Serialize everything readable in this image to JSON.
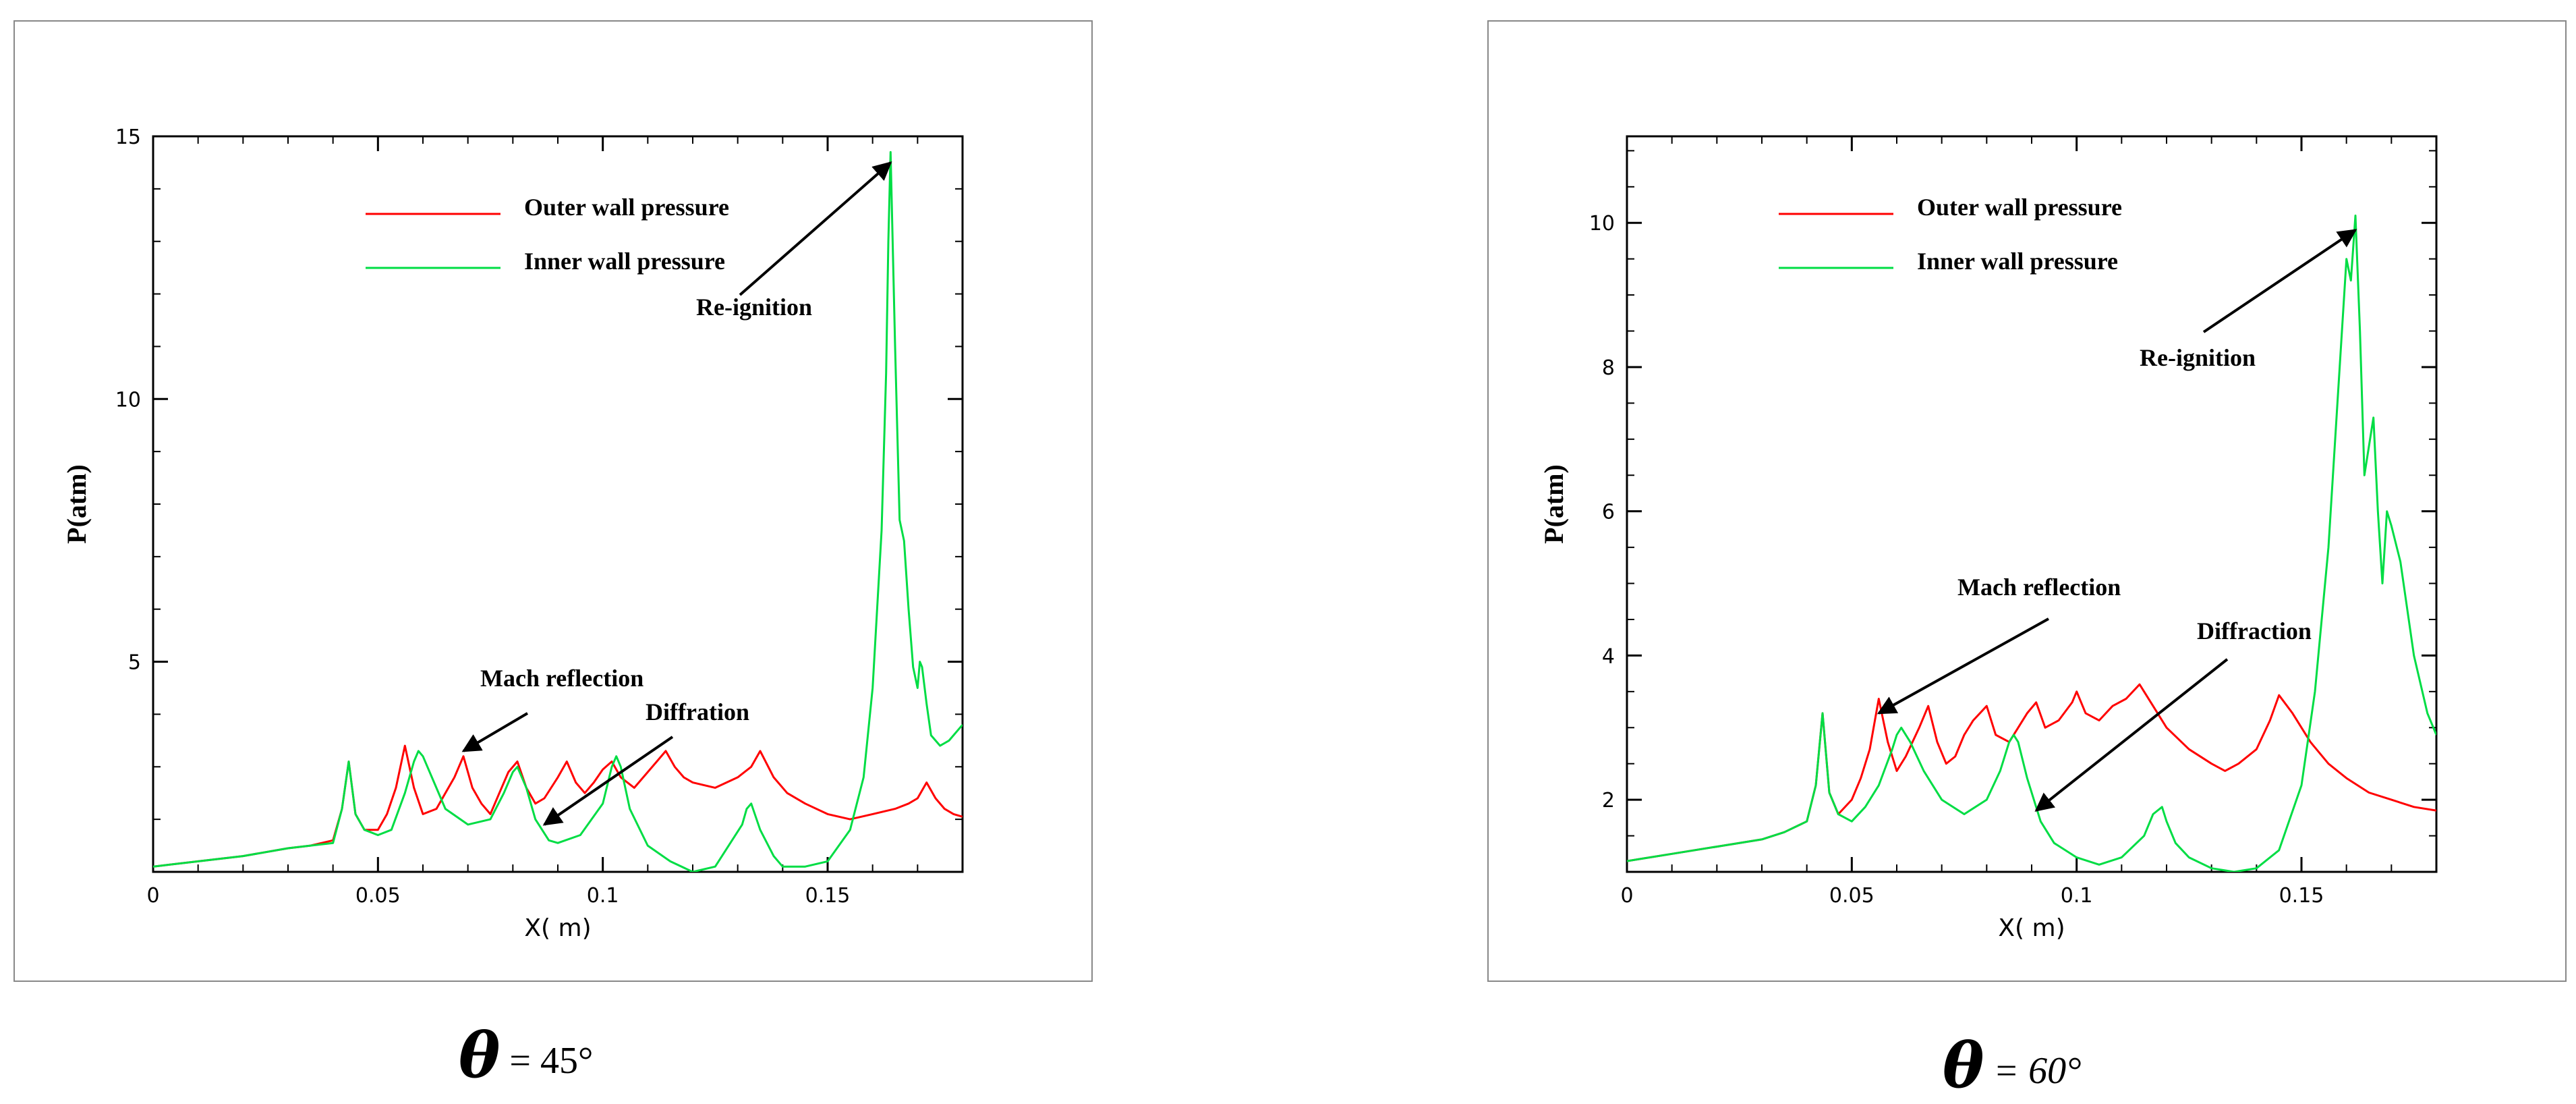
{
  "chart_data": [
    {
      "type": "line",
      "xlabel": "X( m)",
      "ylabel": "P(atm)",
      "xlim": [
        0,
        0.18
      ],
      "ylim": [
        1,
        15
      ],
      "x_ticks": [
        "0",
        "0.05",
        "0.1",
        "0.15"
      ],
      "y_ticks": [
        "5",
        "10",
        "15"
      ],
      "legend_position": "top",
      "series": [
        {
          "name": "Outer wall pressure",
          "color": "#ff0000",
          "x": [
            0,
            0.01,
            0.02,
            0.03,
            0.035,
            0.04,
            0.042,
            0.0435,
            0.045,
            0.047,
            0.05,
            0.052,
            0.054,
            0.056,
            0.058,
            0.06,
            0.063,
            0.065,
            0.067,
            0.069,
            0.071,
            0.073,
            0.075,
            0.077,
            0.079,
            0.081,
            0.083,
            0.085,
            0.087,
            0.09,
            0.092,
            0.094,
            0.096,
            0.098,
            0.1,
            0.102,
            0.104,
            0.107,
            0.11,
            0.112,
            0.114,
            0.116,
            0.118,
            0.12,
            0.125,
            0.13,
            0.133,
            0.135,
            0.138,
            0.141,
            0.145,
            0.15,
            0.155,
            0.16,
            0.165,
            0.168,
            0.17,
            0.172,
            0.174,
            0.176,
            0.178,
            0.18
          ],
          "y": [
            1.1,
            1.2,
            1.3,
            1.45,
            1.5,
            1.6,
            2.2,
            3.1,
            2.1,
            1.8,
            1.8,
            2.1,
            2.6,
            3.4,
            2.6,
            2.1,
            2.2,
            2.5,
            2.8,
            3.2,
            2.6,
            2.3,
            2.1,
            2.5,
            2.9,
            3.1,
            2.6,
            2.3,
            2.4,
            2.8,
            3.1,
            2.7,
            2.5,
            2.7,
            2.95,
            3.1,
            2.8,
            2.6,
            2.9,
            3.1,
            3.3,
            3.0,
            2.8,
            2.7,
            2.6,
            2.8,
            3.0,
            3.3,
            2.8,
            2.5,
            2.3,
            2.1,
            2.0,
            2.1,
            2.2,
            2.3,
            2.4,
            2.7,
            2.4,
            2.2,
            2.1,
            2.05
          ]
        },
        {
          "name": "Inner wall pressure",
          "color": "#00dd44",
          "x": [
            0,
            0.01,
            0.02,
            0.03,
            0.035,
            0.04,
            0.042,
            0.0435,
            0.045,
            0.047,
            0.05,
            0.053,
            0.056,
            0.058,
            0.059,
            0.06,
            0.062,
            0.065,
            0.07,
            0.075,
            0.078,
            0.08,
            0.081,
            0.083,
            0.085,
            0.088,
            0.09,
            0.095,
            0.1,
            0.102,
            0.103,
            0.104,
            0.106,
            0.11,
            0.115,
            0.12,
            0.125,
            0.128,
            0.131,
            0.132,
            0.133,
            0.135,
            0.138,
            0.14,
            0.145,
            0.15,
            0.155,
            0.158,
            0.16,
            0.162,
            0.163,
            0.1635,
            0.164,
            0.165,
            0.166,
            0.167,
            0.168,
            0.169,
            0.17,
            0.1705,
            0.171,
            0.172,
            0.173,
            0.175,
            0.177,
            0.179,
            0.18
          ],
          "y": [
            1.1,
            1.2,
            1.3,
            1.45,
            1.5,
            1.55,
            2.2,
            3.1,
            2.1,
            1.8,
            1.7,
            1.8,
            2.5,
            3.1,
            3.3,
            3.2,
            2.8,
            2.2,
            1.9,
            2.0,
            2.5,
            2.9,
            3.0,
            2.6,
            2.0,
            1.6,
            1.55,
            1.7,
            2.3,
            3.0,
            3.2,
            3.0,
            2.2,
            1.5,
            1.2,
            1.0,
            1.1,
            1.5,
            1.9,
            2.2,
            2.3,
            1.8,
            1.3,
            1.1,
            1.1,
            1.2,
            1.8,
            2.8,
            4.5,
            7.5,
            10.5,
            13.0,
            14.7,
            11.0,
            7.7,
            7.3,
            6.0,
            4.9,
            4.5,
            5.0,
            4.9,
            4.2,
            3.6,
            3.4,
            3.5,
            3.7,
            3.8
          ]
        }
      ],
      "annotations": [
        {
          "text": "Re-ignition",
          "points_to": [
            0.164,
            14.5
          ]
        },
        {
          "text": "Mach reflection",
          "points_to": [
            0.069,
            3.3
          ]
        },
        {
          "text": "Diffration",
          "points_to": [
            0.087,
            1.9
          ]
        }
      ],
      "caption": {
        "symbol": "θ",
        "value": "= 45°"
      }
    },
    {
      "type": "line",
      "xlabel": "X( m)",
      "ylabel": "P(atm)",
      "xlim": [
        0,
        0.18
      ],
      "ylim": [
        1,
        11.2
      ],
      "x_ticks": [
        "0",
        "0.05",
        "0.1",
        "0.15"
      ],
      "y_ticks": [
        "2",
        "4",
        "6",
        "8",
        "10"
      ],
      "legend_position": "top",
      "series": [
        {
          "name": "Outer wall pressure",
          "color": "#ff0000",
          "x": [
            0,
            0.01,
            0.02,
            0.03,
            0.035,
            0.04,
            0.042,
            0.0435,
            0.045,
            0.047,
            0.05,
            0.052,
            0.054,
            0.056,
            0.058,
            0.06,
            0.062,
            0.065,
            0.067,
            0.069,
            0.071,
            0.073,
            0.075,
            0.077,
            0.08,
            0.082,
            0.085,
            0.087,
            0.089,
            0.091,
            0.093,
            0.096,
            0.099,
            0.1,
            0.102,
            0.105,
            0.108,
            0.111,
            0.114,
            0.117,
            0.12,
            0.125,
            0.13,
            0.133,
            0.136,
            0.14,
            0.143,
            0.145,
            0.148,
            0.152,
            0.156,
            0.16,
            0.165,
            0.17,
            0.175,
            0.18
          ],
          "y": [
            1.15,
            1.25,
            1.35,
            1.45,
            1.55,
            1.7,
            2.2,
            3.2,
            2.1,
            1.8,
            2.0,
            2.3,
            2.7,
            3.4,
            2.8,
            2.4,
            2.6,
            3.0,
            3.3,
            2.8,
            2.5,
            2.6,
            2.9,
            3.1,
            3.3,
            2.9,
            2.8,
            3.0,
            3.2,
            3.35,
            3.0,
            3.1,
            3.35,
            3.5,
            3.2,
            3.1,
            3.3,
            3.4,
            3.6,
            3.3,
            3.0,
            2.7,
            2.5,
            2.4,
            2.5,
            2.7,
            3.1,
            3.45,
            3.2,
            2.8,
            2.5,
            2.3,
            2.1,
            2.0,
            1.9,
            1.85
          ]
        },
        {
          "name": "Inner wall pressure",
          "color": "#00dd44",
          "x": [
            0,
            0.01,
            0.02,
            0.03,
            0.035,
            0.04,
            0.042,
            0.0435,
            0.045,
            0.047,
            0.05,
            0.053,
            0.056,
            0.059,
            0.06,
            0.061,
            0.063,
            0.066,
            0.07,
            0.075,
            0.08,
            0.083,
            0.085,
            0.086,
            0.087,
            0.089,
            0.092,
            0.095,
            0.1,
            0.105,
            0.11,
            0.115,
            0.117,
            0.119,
            0.12,
            0.122,
            0.125,
            0.13,
            0.135,
            0.14,
            0.145,
            0.15,
            0.153,
            0.156,
            0.158,
            0.16,
            0.161,
            0.162,
            0.163,
            0.164,
            0.165,
            0.166,
            0.167,
            0.168,
            0.169,
            0.17,
            0.172,
            0.175,
            0.178,
            0.18
          ],
          "y": [
            1.15,
            1.25,
            1.35,
            1.45,
            1.55,
            1.7,
            2.2,
            3.2,
            2.1,
            1.8,
            1.7,
            1.9,
            2.2,
            2.7,
            2.9,
            3.0,
            2.8,
            2.4,
            2.0,
            1.8,
            2.0,
            2.4,
            2.8,
            2.9,
            2.8,
            2.3,
            1.7,
            1.4,
            1.2,
            1.1,
            1.2,
            1.5,
            1.8,
            1.9,
            1.7,
            1.4,
            1.2,
            1.05,
            1.0,
            1.05,
            1.3,
            2.2,
            3.5,
            5.5,
            7.5,
            9.5,
            9.2,
            10.1,
            8.5,
            6.5,
            6.9,
            7.3,
            6.0,
            5.0,
            6.0,
            5.8,
            5.3,
            4.0,
            3.2,
            2.9
          ]
        }
      ],
      "annotations": [
        {
          "text": "Re-ignition",
          "points_to": [
            0.162,
            9.9
          ]
        },
        {
          "text": "Mach reflection",
          "points_to": [
            0.056,
            3.2
          ]
        },
        {
          "text": "Diffraction",
          "points_to": [
            0.091,
            1.85
          ]
        }
      ],
      "caption": {
        "symbol": "θ",
        "value": "= 60°"
      }
    }
  ]
}
